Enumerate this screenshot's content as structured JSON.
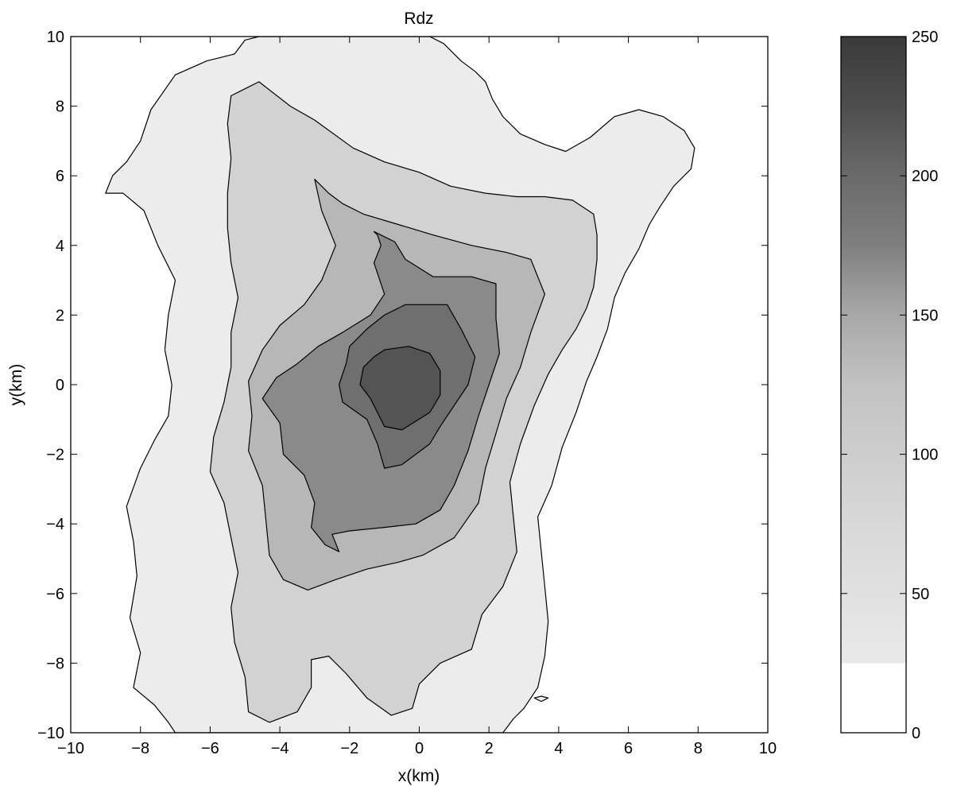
{
  "chart_data": {
    "type": "heatmap",
    "subtype": "filled-contour",
    "title": "Rdz",
    "xlabel": "x(km)",
    "ylabel": "y(km)",
    "xlim": [
      -10,
      10
    ],
    "ylim": [
      -10,
      10
    ],
    "x_ticks": [
      -10,
      -8,
      -6,
      -4,
      -2,
      0,
      2,
      4,
      6,
      8,
      10
    ],
    "y_ticks": [
      -10,
      -8,
      -6,
      -4,
      -2,
      0,
      2,
      4,
      6,
      8,
      10
    ],
    "grid": false,
    "colormap": "gray-reversed",
    "colorbar": {
      "range": [
        0,
        250
      ],
      "ticks": [
        0,
        50,
        100,
        150,
        200,
        250
      ],
      "placement": "right"
    },
    "contour_levels": [
      {
        "level": 25,
        "shade": "#ececec",
        "polygons": [
          [
            [
              -9.0,
              5.5
            ],
            [
              -8.8,
              6.0
            ],
            [
              -8.4,
              6.4
            ],
            [
              -8.0,
              7.0
            ],
            [
              -7.7,
              7.9
            ],
            [
              -7.0,
              8.9
            ],
            [
              -6.1,
              9.3
            ],
            [
              -5.3,
              9.5
            ],
            [
              -5.0,
              9.9
            ],
            [
              -4.6,
              10.0
            ],
            [
              0.3,
              10.0
            ],
            [
              0.7,
              9.8
            ],
            [
              1.2,
              9.3
            ],
            [
              1.6,
              9.0
            ],
            [
              1.9,
              8.7
            ],
            [
              2.1,
              8.2
            ],
            [
              2.4,
              7.7
            ],
            [
              2.9,
              7.2
            ],
            [
              3.6,
              6.9
            ],
            [
              4.2,
              6.7
            ],
            [
              4.9,
              7.1
            ],
            [
              5.6,
              7.7
            ],
            [
              6.3,
              7.9
            ],
            [
              7.0,
              7.7
            ],
            [
              7.6,
              7.3
            ],
            [
              7.9,
              6.8
            ],
            [
              7.8,
              6.2
            ],
            [
              7.3,
              5.7
            ],
            [
              6.9,
              5.1
            ],
            [
              6.6,
              4.6
            ],
            [
              6.3,
              3.9
            ],
            [
              5.9,
              3.2
            ],
            [
              5.6,
              2.5
            ],
            [
              5.4,
              1.6
            ],
            [
              5.1,
              0.8
            ],
            [
              4.8,
              0.1
            ],
            [
              4.5,
              -0.8
            ],
            [
              4.1,
              -1.8
            ],
            [
              3.8,
              -2.9
            ],
            [
              3.4,
              -3.8
            ],
            [
              3.5,
              -4.8
            ],
            [
              3.6,
              -5.8
            ],
            [
              3.7,
              -6.8
            ],
            [
              3.6,
              -7.8
            ],
            [
              3.4,
              -8.7
            ],
            [
              3.0,
              -9.3
            ],
            [
              2.7,
              -9.6
            ],
            [
              2.4,
              -10.0
            ],
            [
              -7.0,
              -10.0
            ],
            [
              -7.2,
              -9.7
            ],
            [
              -7.6,
              -9.2
            ],
            [
              -8.2,
              -8.7
            ],
            [
              -8.0,
              -7.7
            ],
            [
              -8.3,
              -6.7
            ],
            [
              -8.1,
              -5.5
            ],
            [
              -8.2,
              -4.5
            ],
            [
              -8.4,
              -3.5
            ],
            [
              -8.0,
              -2.4
            ],
            [
              -7.6,
              -1.6
            ],
            [
              -7.2,
              -0.9
            ],
            [
              -7.1,
              0.0
            ],
            [
              -7.3,
              1.0
            ],
            [
              -7.2,
              2.0
            ],
            [
              -7.0,
              3.0
            ],
            [
              -7.5,
              4.0
            ],
            [
              -7.9,
              5.0
            ],
            [
              -8.5,
              5.5
            ]
          ]
        ]
      },
      {
        "level": 50,
        "shade": "#d2d2d2",
        "polygons": [
          [
            [
              -5.4,
              8.3
            ],
            [
              -5.0,
              8.5
            ],
            [
              -4.6,
              8.7
            ],
            [
              -3.7,
              8.0
            ],
            [
              -3.0,
              7.6
            ],
            [
              -1.9,
              6.8
            ],
            [
              -1.0,
              6.4
            ],
            [
              0.0,
              6.1
            ],
            [
              0.9,
              5.7
            ],
            [
              1.9,
              5.5
            ],
            [
              2.8,
              5.4
            ],
            [
              3.6,
              5.4
            ],
            [
              4.4,
              5.3
            ],
            [
              5.0,
              4.9
            ],
            [
              5.1,
              4.3
            ],
            [
              5.1,
              3.6
            ],
            [
              5.0,
              2.8
            ],
            [
              4.8,
              2.2
            ],
            [
              4.5,
              1.6
            ],
            [
              4.1,
              1.0
            ],
            [
              3.7,
              0.3
            ],
            [
              3.3,
              -0.6
            ],
            [
              2.9,
              -1.7
            ],
            [
              2.6,
              -2.8
            ],
            [
              2.7,
              -3.8
            ],
            [
              2.8,
              -4.8
            ],
            [
              2.4,
              -5.8
            ],
            [
              1.8,
              -6.6
            ],
            [
              1.5,
              -7.6
            ],
            [
              0.6,
              -8.0
            ],
            [
              0.0,
              -8.6
            ],
            [
              -0.2,
              -9.3
            ],
            [
              -0.8,
              -9.5
            ],
            [
              -1.5,
              -9.0
            ],
            [
              -2.1,
              -8.3
            ],
            [
              -2.6,
              -7.8
            ],
            [
              -3.1,
              -7.9
            ],
            [
              -3.1,
              -8.7
            ],
            [
              -3.5,
              -9.4
            ],
            [
              -4.3,
              -9.7
            ],
            [
              -4.9,
              -9.4
            ],
            [
              -5.0,
              -8.4
            ],
            [
              -5.3,
              -7.4
            ],
            [
              -5.4,
              -6.4
            ],
            [
              -5.2,
              -5.4
            ],
            [
              -5.4,
              -4.4
            ],
            [
              -5.6,
              -3.4
            ],
            [
              -6.0,
              -2.5
            ],
            [
              -5.9,
              -1.5
            ],
            [
              -5.6,
              -0.5
            ],
            [
              -5.4,
              0.5
            ],
            [
              -5.4,
              1.5
            ],
            [
              -5.2,
              2.5
            ],
            [
              -5.4,
              3.5
            ],
            [
              -5.5,
              4.5
            ],
            [
              -5.5,
              5.5
            ],
            [
              -5.4,
              6.5
            ],
            [
              -5.5,
              7.5
            ]
          ]
        ]
      },
      {
        "level": 100,
        "shade": "#b7b7b7",
        "polygons": [
          [
            [
              -3.0,
              5.9
            ],
            [
              -2.6,
              5.5
            ],
            [
              -2.2,
              5.2
            ],
            [
              -1.6,
              4.9
            ],
            [
              -0.6,
              4.6
            ],
            [
              0.4,
              4.3
            ],
            [
              1.5,
              4.0
            ],
            [
              2.5,
              3.8
            ],
            [
              3.2,
              3.6
            ],
            [
              3.6,
              2.6
            ],
            [
              3.2,
              1.5
            ],
            [
              2.9,
              0.5
            ],
            [
              2.5,
              -0.4
            ],
            [
              2.2,
              -1.4
            ],
            [
              1.9,
              -2.4
            ],
            [
              1.7,
              -3.4
            ],
            [
              1.0,
              -4.4
            ],
            [
              0.1,
              -4.9
            ],
            [
              -0.6,
              -5.1
            ],
            [
              -1.5,
              -5.3
            ],
            [
              -2.4,
              -5.6
            ],
            [
              -3.2,
              -5.9
            ],
            [
              -3.9,
              -5.6
            ],
            [
              -4.3,
              -4.9
            ],
            [
              -4.4,
              -3.9
            ],
            [
              -4.5,
              -2.9
            ],
            [
              -4.9,
              -1.9
            ],
            [
              -4.8,
              -0.9
            ],
            [
              -4.9,
              0.1
            ],
            [
              -4.5,
              1.0
            ],
            [
              -4.0,
              1.7
            ],
            [
              -3.3,
              2.3
            ],
            [
              -2.8,
              3.0
            ],
            [
              -2.4,
              4.0
            ],
            [
              -2.8,
              5.0
            ]
          ]
        ]
      },
      {
        "level": 150,
        "shade": "#8a8a8a",
        "polygons": [
          [
            [
              -1.3,
              4.4
            ],
            [
              -0.7,
              4.1
            ],
            [
              -0.4,
              3.6
            ],
            [
              0.4,
              3.1
            ],
            [
              1.5,
              3.1
            ],
            [
              2.2,
              2.9
            ],
            [
              2.2,
              1.9
            ],
            [
              2.3,
              0.9
            ],
            [
              2.0,
              0.0
            ],
            [
              1.7,
              -0.9
            ],
            [
              1.4,
              -1.9
            ],
            [
              1.0,
              -2.9
            ],
            [
              0.6,
              -3.6
            ],
            [
              -0.1,
              -4.0
            ],
            [
              -1.0,
              -4.1
            ],
            [
              -2.0,
              -4.2
            ],
            [
              -2.5,
              -4.3
            ],
            [
              -2.3,
              -4.8
            ],
            [
              -2.7,
              -4.6
            ],
            [
              -3.1,
              -4.1
            ],
            [
              -3.0,
              -3.4
            ],
            [
              -3.3,
              -2.6
            ],
            [
              -3.9,
              -2.0
            ],
            [
              -4.0,
              -1.1
            ],
            [
              -4.5,
              -0.4
            ],
            [
              -4.1,
              0.2
            ],
            [
              -3.5,
              0.6
            ],
            [
              -2.9,
              1.1
            ],
            [
              -2.2,
              1.5
            ],
            [
              -1.4,
              2.0
            ],
            [
              -1.0,
              2.6
            ],
            [
              -1.3,
              3.5
            ],
            [
              -1.1,
              4.0
            ],
            [
              -1.2,
              4.3
            ]
          ]
        ]
      },
      {
        "level": 175,
        "shade": "#6f6f6f",
        "polygons": [
          [
            [
              -1.0,
              2.0
            ],
            [
              -0.4,
              2.3
            ],
            [
              0.2,
              2.3
            ],
            [
              0.8,
              2.3
            ],
            [
              1.2,
              1.6
            ],
            [
              1.6,
              0.8
            ],
            [
              1.4,
              0.0
            ],
            [
              1.0,
              -0.6
            ],
            [
              0.6,
              -1.2
            ],
            [
              0.3,
              -1.7
            ],
            [
              -0.5,
              -2.3
            ],
            [
              -1.0,
              -2.4
            ],
            [
              -1.2,
              -1.7
            ],
            [
              -1.5,
              -1.0
            ],
            [
              -2.2,
              -0.5
            ],
            [
              -2.3,
              0.0
            ],
            [
              -2.1,
              0.6
            ],
            [
              -2.0,
              1.1
            ],
            [
              -1.5,
              1.6
            ]
          ]
        ]
      },
      {
        "level": 200,
        "shade": "#545454",
        "polygons": [
          [
            [
              -1.0,
              1.0
            ],
            [
              -0.3,
              1.1
            ],
            [
              0.3,
              0.9
            ],
            [
              0.6,
              0.4
            ],
            [
              0.6,
              -0.3
            ],
            [
              0.3,
              -0.8
            ],
            [
              -0.5,
              -1.3
            ],
            [
              -1.0,
              -1.2
            ],
            [
              -1.2,
              -0.8
            ],
            [
              -1.4,
              -0.4
            ],
            [
              -1.7,
              0.0
            ],
            [
              -1.6,
              0.5
            ],
            [
              -1.3,
              0.8
            ]
          ]
        ]
      },
      {
        "level": 25,
        "shade": "#ececec",
        "polygons": [
          [
            [
              3.3,
              -9.0
            ],
            [
              3.5,
              -8.95
            ],
            [
              3.7,
              -9.0
            ],
            [
              3.5,
              -9.1
            ]
          ]
        ]
      }
    ]
  }
}
